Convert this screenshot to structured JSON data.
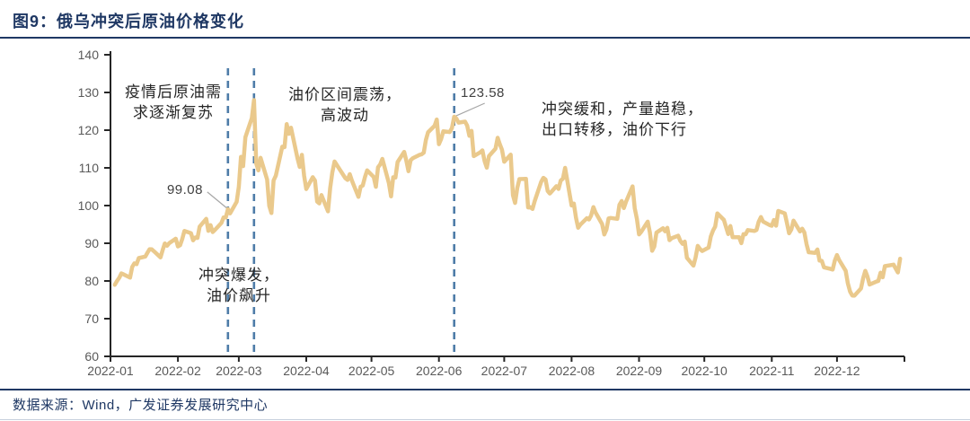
{
  "title": "图9：俄乌冲突后原油价格变化",
  "footer": {
    "source": "数据来源：Wind，广发证券发展研究中心"
  },
  "chart_data": {
    "type": "line",
    "title": "俄乌冲突后原油价格变化",
    "xlabel": "",
    "ylabel": "",
    "ylim": [
      60,
      140
    ],
    "grid": false,
    "line_color": "#eac98c",
    "event_line_color": "#4e7ca8",
    "axis_color": "#262626",
    "tick_label_color": "#595959",
    "y_ticks": [
      140,
      130,
      120,
      110,
      100,
      90,
      80,
      70,
      60
    ],
    "x_ticks": [
      "2022-01",
      "2022-02",
      "2022-03",
      "2022-04",
      "2022-05",
      "2022-06",
      "2022-07",
      "2022-08",
      "2022-09",
      "2022-10",
      "2022-11",
      "2022-12"
    ],
    "event_dates": [
      "02-24",
      "03-08",
      "06-08"
    ],
    "callouts": [
      {
        "date": "02-24",
        "value": 99.08,
        "label": "99.08"
      },
      {
        "date": "06-08",
        "value": 123.58,
        "label": "123.58"
      }
    ],
    "annotations": [
      {
        "id": "demand-recovery",
        "text": "疫情后原油需\n求逐渐复苏"
      },
      {
        "id": "conflict-outbreak",
        "text": "冲突爆发，\n油价飙升"
      },
      {
        "id": "range-volatility",
        "text": "油价区间震荡，\n高波动"
      },
      {
        "id": "conflict-easing",
        "text": "冲突缓和，产量趋稳，\n出口转移，油价下行"
      }
    ],
    "points": [
      [
        "01-03",
        78.98
      ],
      [
        "01-04",
        80.0
      ],
      [
        "01-05",
        80.8
      ],
      [
        "01-06",
        81.99
      ],
      [
        "01-07",
        81.75
      ],
      [
        "01-10",
        80.87
      ],
      [
        "01-11",
        83.72
      ],
      [
        "01-12",
        84.67
      ],
      [
        "01-13",
        84.47
      ],
      [
        "01-14",
        86.06
      ],
      [
        "01-17",
        86.48
      ],
      [
        "01-18",
        87.51
      ],
      [
        "01-19",
        88.44
      ],
      [
        "01-20",
        88.38
      ],
      [
        "01-21",
        87.89
      ],
      [
        "01-24",
        86.27
      ],
      [
        "01-25",
        88.2
      ],
      [
        "01-26",
        89.96
      ],
      [
        "01-27",
        89.34
      ],
      [
        "01-28",
        90.03
      ],
      [
        "01-31",
        91.21
      ],
      [
        "02-01",
        89.16
      ],
      [
        "02-02",
        89.47
      ],
      [
        "02-03",
        91.11
      ],
      [
        "02-04",
        93.27
      ],
      [
        "02-07",
        92.69
      ],
      [
        "02-08",
        90.78
      ],
      [
        "02-09",
        91.55
      ],
      [
        "02-10",
        91.41
      ],
      [
        "02-11",
        94.44
      ],
      [
        "02-14",
        96.48
      ],
      [
        "02-15",
        93.28
      ],
      [
        "02-16",
        94.81
      ],
      [
        "02-17",
        92.97
      ],
      [
        "02-18",
        93.54
      ],
      [
        "02-21",
        95.39
      ],
      [
        "02-22",
        96.84
      ],
      [
        "02-23",
        96.84
      ],
      [
        "02-24",
        99.08
      ],
      [
        "02-25",
        97.93
      ],
      [
        "02-28",
        100.99
      ],
      [
        "03-01",
        104.97
      ],
      [
        "03-02",
        112.93
      ],
      [
        "03-03",
        110.46
      ],
      [
        "03-04",
        118.11
      ],
      [
        "03-07",
        123.21
      ],
      [
        "03-08",
        127.98
      ],
      [
        "03-09",
        111.14
      ],
      [
        "03-10",
        109.33
      ],
      [
        "03-11",
        112.67
      ],
      [
        "03-14",
        106.9
      ],
      [
        "03-15",
        99.91
      ],
      [
        "03-16",
        98.02
      ],
      [
        "03-17",
        106.64
      ],
      [
        "03-18",
        107.93
      ],
      [
        "03-21",
        115.62
      ],
      [
        "03-22",
        115.48
      ],
      [
        "03-23",
        121.6
      ],
      [
        "03-24",
        119.03
      ],
      [
        "03-25",
        120.65
      ],
      [
        "03-28",
        112.48
      ],
      [
        "03-29",
        110.23
      ],
      [
        "03-30",
        113.45
      ],
      [
        "03-31",
        107.91
      ],
      [
        "04-01",
        104.39
      ],
      [
        "04-04",
        107.53
      ],
      [
        "04-05",
        106.64
      ],
      [
        "04-06",
        101.07
      ],
      [
        "04-07",
        100.58
      ],
      [
        "04-08",
        102.78
      ],
      [
        "04-11",
        98.48
      ],
      [
        "04-12",
        104.64
      ],
      [
        "04-13",
        108.78
      ],
      [
        "04-14",
        111.7
      ],
      [
        "04-19",
        107.25
      ],
      [
        "04-20",
        106.8
      ],
      [
        "04-21",
        108.33
      ],
      [
        "04-22",
        106.65
      ],
      [
        "04-25",
        102.32
      ],
      [
        "04-26",
        104.99
      ],
      [
        "04-27",
        105.32
      ],
      [
        "04-28",
        107.59
      ],
      [
        "04-29",
        109.34
      ],
      [
        "05-02",
        107.58
      ],
      [
        "05-03",
        104.97
      ],
      [
        "05-04",
        110.14
      ],
      [
        "05-05",
        110.9
      ],
      [
        "05-06",
        112.39
      ],
      [
        "05-09",
        105.94
      ],
      [
        "05-10",
        102.46
      ],
      [
        "05-11",
        107.51
      ],
      [
        "05-12",
        107.45
      ],
      [
        "05-13",
        111.55
      ],
      [
        "05-16",
        114.24
      ],
      [
        "05-17",
        111.93
      ],
      [
        "05-18",
        109.11
      ],
      [
        "05-19",
        112.04
      ],
      [
        "05-20",
        112.55
      ],
      [
        "05-23",
        113.42
      ],
      [
        "05-24",
        113.56
      ],
      [
        "05-25",
        114.03
      ],
      [
        "05-26",
        117.4
      ],
      [
        "05-27",
        119.43
      ],
      [
        "05-30",
        121.17
      ],
      [
        "05-31",
        122.84
      ],
      [
        "06-01",
        116.29
      ],
      [
        "06-02",
        117.61
      ],
      [
        "06-03",
        119.72
      ],
      [
        "06-06",
        119.51
      ],
      [
        "06-07",
        120.57
      ],
      [
        "06-08",
        123.58
      ],
      [
        "06-09",
        123.07
      ],
      [
        "06-10",
        122.01
      ],
      [
        "06-13",
        122.27
      ],
      [
        "06-14",
        121.17
      ],
      [
        "06-15",
        118.51
      ],
      [
        "06-16",
        119.81
      ],
      [
        "06-17",
        113.12
      ],
      [
        "06-20",
        114.13
      ],
      [
        "06-21",
        114.65
      ],
      [
        "06-22",
        111.74
      ],
      [
        "06-23",
        110.05
      ],
      [
        "06-24",
        113.12
      ],
      [
        "06-27",
        115.09
      ],
      [
        "06-28",
        117.98
      ],
      [
        "06-29",
        116.26
      ],
      [
        "06-30",
        114.81
      ],
      [
        "07-01",
        111.63
      ],
      [
        "07-04",
        113.5
      ],
      [
        "07-05",
        102.77
      ],
      [
        "07-06",
        100.69
      ],
      [
        "07-07",
        104.65
      ],
      [
        "07-08",
        107.02
      ],
      [
        "07-11",
        107.1
      ],
      [
        "07-12",
        99.49
      ],
      [
        "07-13",
        99.57
      ],
      [
        "07-14",
        99.1
      ],
      [
        "07-15",
        101.16
      ],
      [
        "07-18",
        106.27
      ],
      [
        "07-19",
        107.35
      ],
      [
        "07-20",
        106.92
      ],
      [
        "07-21",
        103.86
      ],
      [
        "07-22",
        103.2
      ],
      [
        "07-25",
        105.15
      ],
      [
        "07-26",
        104.4
      ],
      [
        "07-27",
        106.62
      ],
      [
        "07-28",
        107.14
      ],
      [
        "07-29",
        110.01
      ],
      [
        "08-01",
        100.03
      ],
      [
        "08-02",
        100.54
      ],
      [
        "08-03",
        96.78
      ],
      [
        "08-04",
        94.12
      ],
      [
        "08-05",
        94.92
      ],
      [
        "08-08",
        96.65
      ],
      [
        "08-09",
        96.31
      ],
      [
        "08-10",
        97.4
      ],
      [
        "08-11",
        99.6
      ],
      [
        "08-12",
        98.15
      ],
      [
        "08-15",
        95.1
      ],
      [
        "08-16",
        92.34
      ],
      [
        "08-17",
        93.65
      ],
      [
        "08-18",
        96.59
      ],
      [
        "08-19",
        96.72
      ],
      [
        "08-22",
        96.48
      ],
      [
        "08-23",
        100.22
      ],
      [
        "08-24",
        101.22
      ],
      [
        "08-25",
        99.34
      ],
      [
        "08-26",
        100.99
      ],
      [
        "08-29",
        105.09
      ],
      [
        "08-30",
        99.31
      ],
      [
        "08-31",
        96.49
      ],
      [
        "09-01",
        92.36
      ],
      [
        "09-02",
        93.02
      ],
      [
        "09-05",
        95.74
      ],
      [
        "09-06",
        92.83
      ],
      [
        "09-07",
        88.0
      ],
      [
        "09-08",
        89.15
      ],
      [
        "09-09",
        92.84
      ],
      [
        "09-12",
        94.0
      ],
      [
        "09-13",
        93.17
      ],
      [
        "09-14",
        94.1
      ],
      [
        "09-15",
        90.84
      ],
      [
        "09-16",
        91.35
      ],
      [
        "09-19",
        92.0
      ],
      [
        "09-20",
        90.62
      ],
      [
        "09-21",
        89.83
      ],
      [
        "09-22",
        90.46
      ],
      [
        "09-23",
        86.15
      ],
      [
        "09-26",
        84.06
      ],
      [
        "09-27",
        86.27
      ],
      [
        "09-28",
        89.32
      ],
      [
        "09-29",
        88.49
      ],
      [
        "09-30",
        87.96
      ],
      [
        "10-03",
        88.86
      ],
      [
        "10-04",
        91.8
      ],
      [
        "10-05",
        93.37
      ],
      [
        "10-06",
        94.42
      ],
      [
        "10-07",
        97.92
      ],
      [
        "10-10",
        96.19
      ],
      [
        "10-11",
        94.29
      ],
      [
        "10-12",
        92.45
      ],
      [
        "10-13",
        94.57
      ],
      [
        "10-14",
        91.63
      ],
      [
        "10-17",
        91.62
      ],
      [
        "10-18",
        90.03
      ],
      [
        "10-19",
        92.41
      ],
      [
        "10-20",
        92.38
      ],
      [
        "10-21",
        93.5
      ],
      [
        "10-24",
        93.26
      ],
      [
        "10-25",
        93.52
      ],
      [
        "10-26",
        95.69
      ],
      [
        "10-27",
        96.96
      ],
      [
        "10-28",
        95.77
      ],
      [
        "10-31",
        94.83
      ],
      [
        "11-01",
        94.65
      ],
      [
        "11-02",
        96.16
      ],
      [
        "11-03",
        94.67
      ],
      [
        "11-04",
        98.57
      ],
      [
        "11-07",
        97.92
      ],
      [
        "11-08",
        95.36
      ],
      [
        "11-09",
        92.65
      ],
      [
        "11-10",
        93.67
      ],
      [
        "11-11",
        95.99
      ],
      [
        "11-14",
        93.14
      ],
      [
        "11-15",
        93.86
      ],
      [
        "11-16",
        92.86
      ],
      [
        "11-17",
        89.78
      ],
      [
        "11-18",
        87.62
      ],
      [
        "11-21",
        87.45
      ],
      [
        "11-22",
        88.36
      ],
      [
        "11-23",
        85.41
      ],
      [
        "11-24",
        85.34
      ],
      [
        "11-25",
        83.63
      ],
      [
        "11-28",
        83.19
      ],
      [
        "11-29",
        83.03
      ],
      [
        "11-30",
        85.43
      ],
      [
        "12-01",
        86.88
      ],
      [
        "12-02",
        85.57
      ],
      [
        "12-05",
        82.68
      ],
      [
        "12-06",
        79.35
      ],
      [
        "12-07",
        77.17
      ],
      [
        "12-08",
        76.15
      ],
      [
        "12-09",
        76.1
      ],
      [
        "12-12",
        77.99
      ],
      [
        "12-13",
        80.68
      ],
      [
        "12-14",
        82.7
      ],
      [
        "12-15",
        81.21
      ],
      [
        "12-16",
        79.04
      ],
      [
        "12-19",
        79.8
      ],
      [
        "12-20",
        79.99
      ],
      [
        "12-21",
        82.2
      ],
      [
        "12-22",
        80.98
      ],
      [
        "12-23",
        83.92
      ],
      [
        "12-27",
        84.33
      ],
      [
        "12-28",
        83.26
      ],
      [
        "12-29",
        82.26
      ],
      [
        "12-30",
        85.91
      ]
    ]
  }
}
